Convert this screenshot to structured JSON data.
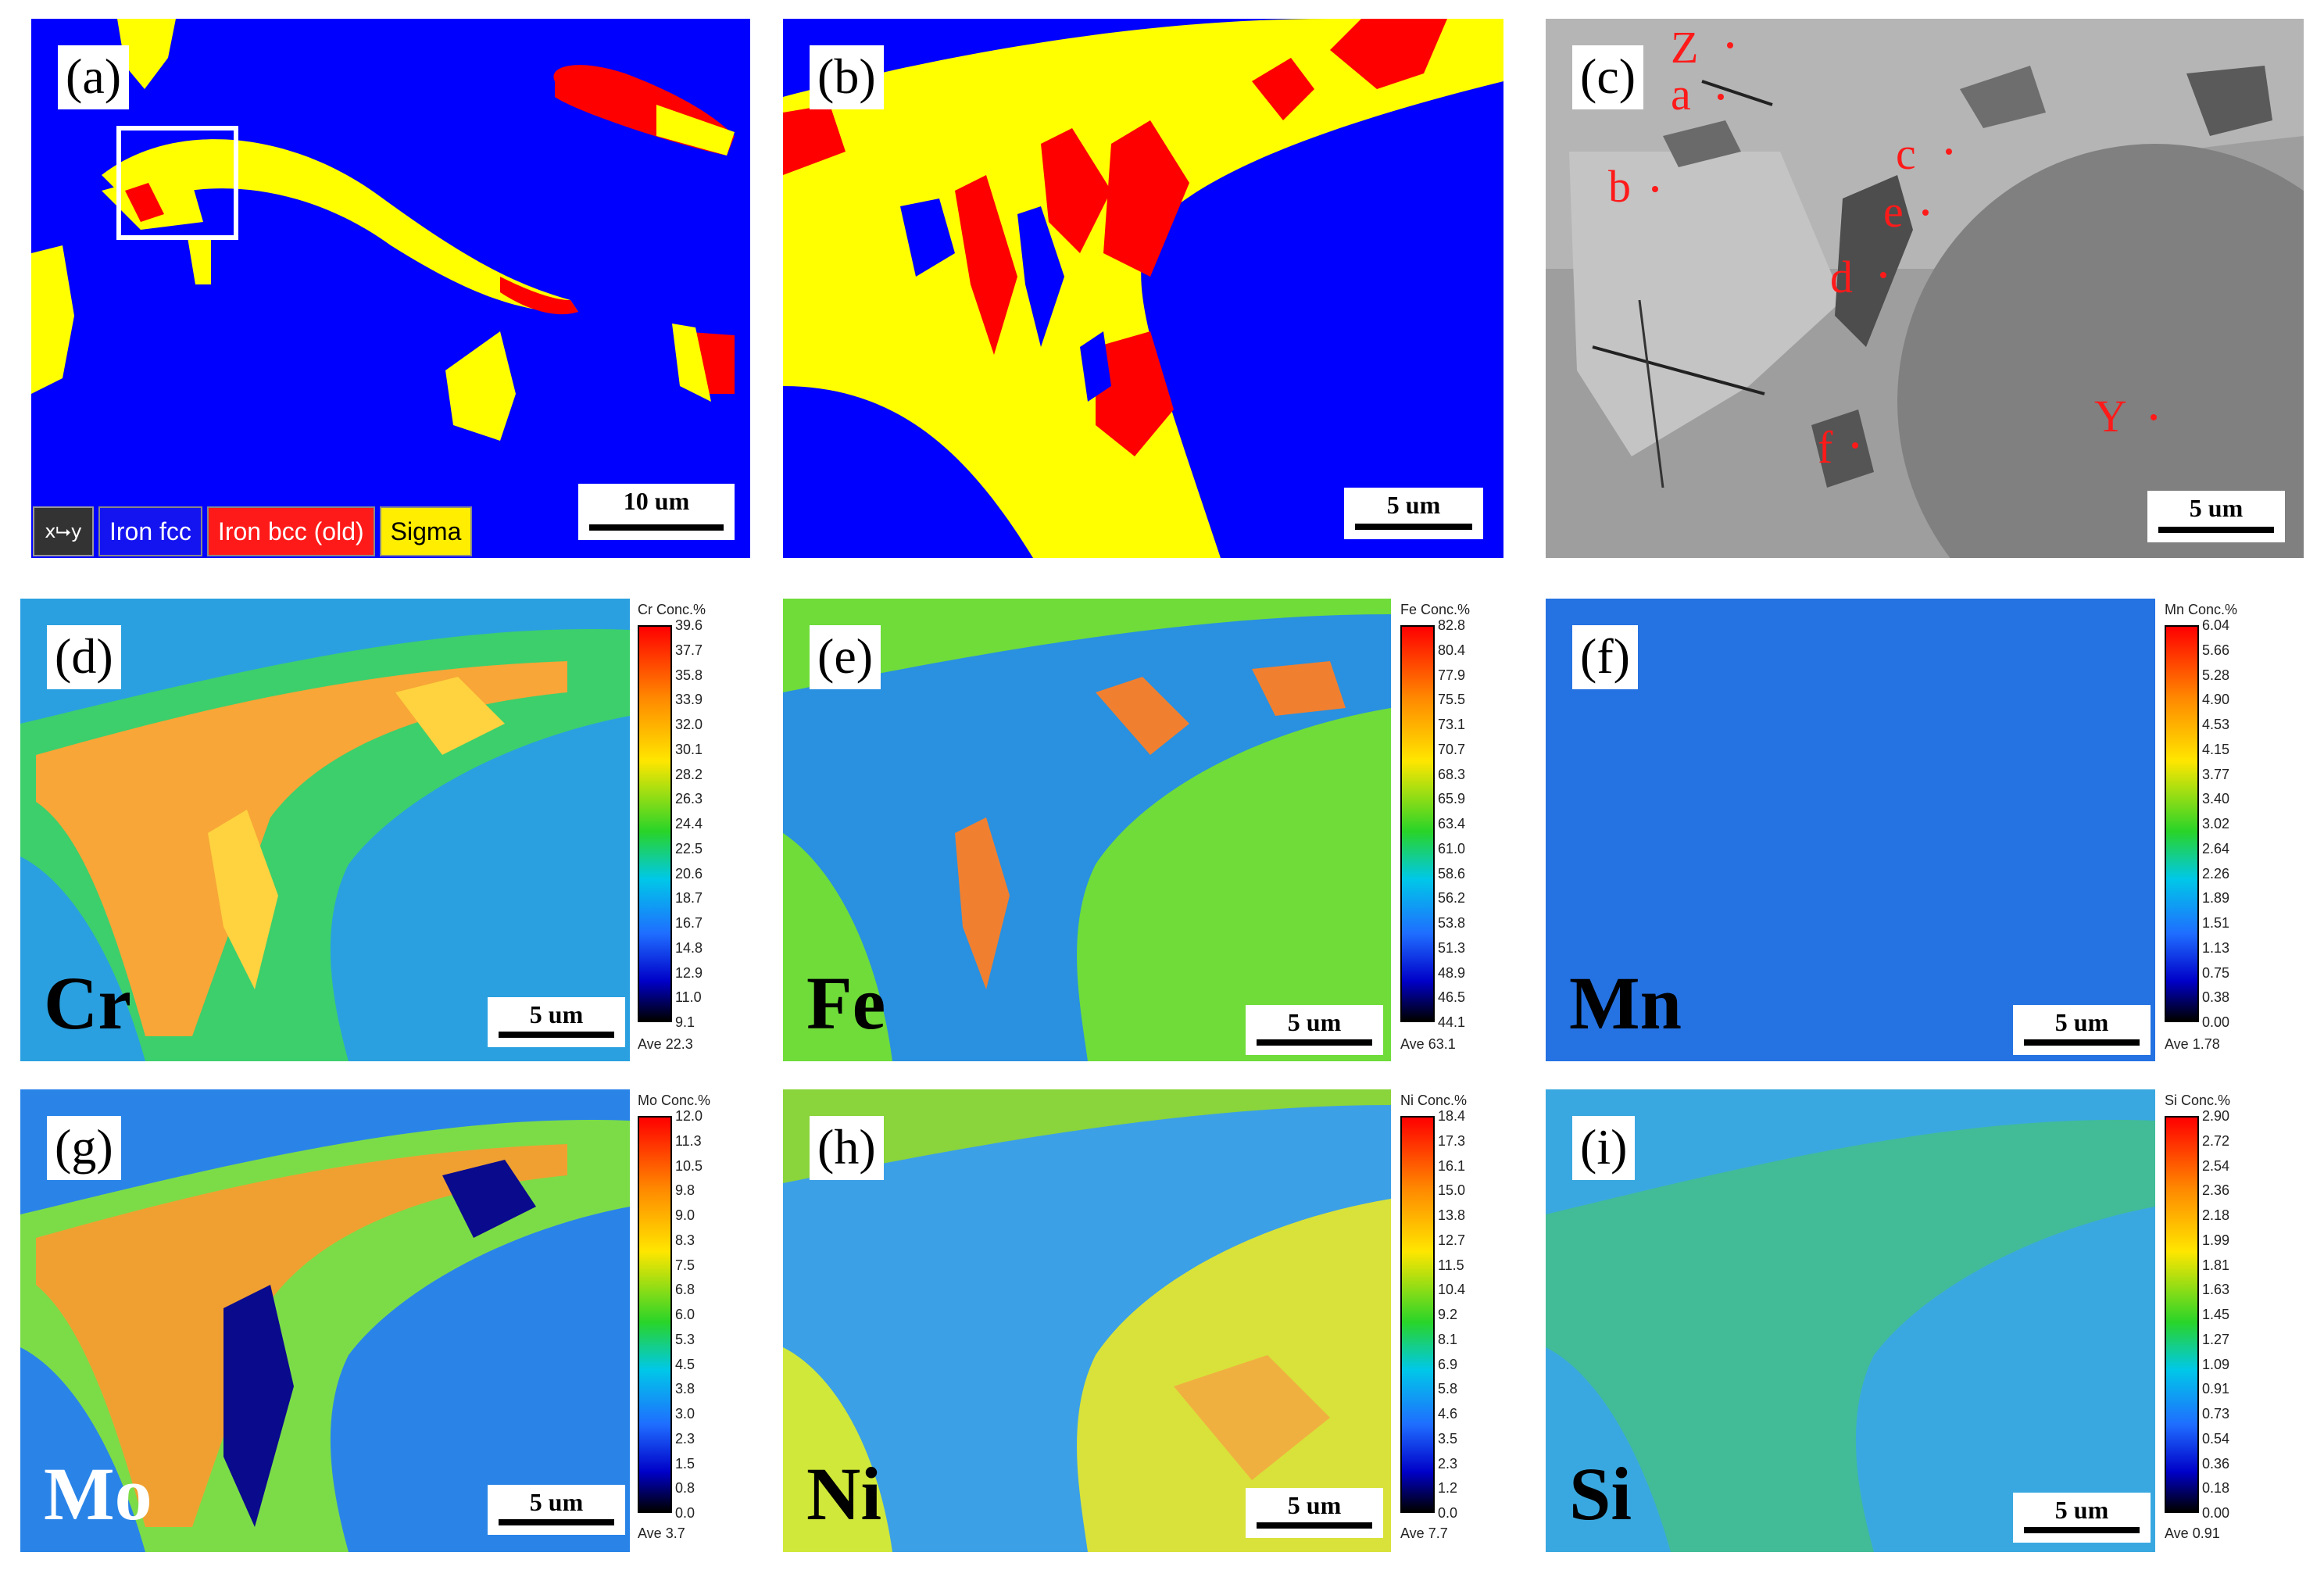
{
  "panels": {
    "a": {
      "label": "(a)",
      "scale": "10 um"
    },
    "b": {
      "label": "(b)",
      "scale": "5 um"
    },
    "c": {
      "label": "(c)",
      "scale": "5 um",
      "points": [
        "Z",
        "a",
        "b",
        "c",
        "e",
        "d",
        "Y",
        "f"
      ]
    },
    "d": {
      "label": "(d)",
      "element": "Cr",
      "scale": "5 um",
      "cbar_title": "Cr  Conc.%",
      "ticks": [
        "39.6",
        "37.7",
        "35.8",
        "33.9",
        "32.0",
        "30.1",
        "28.2",
        "26.3",
        "24.4",
        "22.5",
        "20.6",
        "18.7",
        "16.7",
        "14.8",
        "12.9",
        "11.0",
        "9.1"
      ],
      "ave": "Ave 22.3"
    },
    "e": {
      "label": "(e)",
      "element": "Fe",
      "scale": "5 um",
      "cbar_title": "Fe  Conc.%",
      "ticks": [
        "82.8",
        "80.4",
        "77.9",
        "75.5",
        "73.1",
        "70.7",
        "68.3",
        "65.9",
        "63.4",
        "61.0",
        "58.6",
        "56.2",
        "53.8",
        "51.3",
        "48.9",
        "46.5",
        "44.1"
      ],
      "ave": "Ave 63.1"
    },
    "f": {
      "label": "(f)",
      "element": "Mn",
      "scale": "5 um",
      "cbar_title": "Mn  Conc.%",
      "ticks": [
        "6.04",
        "5.66",
        "5.28",
        "4.90",
        "4.53",
        "4.15",
        "3.77",
        "3.40",
        "3.02",
        "2.64",
        "2.26",
        "1.89",
        "1.51",
        "1.13",
        "0.75",
        "0.38",
        "0.00"
      ],
      "ave": "Ave 1.78"
    },
    "g": {
      "label": "(g)",
      "element": "Mo",
      "scale": "5 um",
      "cbar_title": "Mo  Conc.%",
      "ticks": [
        "12.0",
        "11.3",
        "10.5",
        "9.8",
        "9.0",
        "8.3",
        "7.5",
        "6.8",
        "6.0",
        "5.3",
        "4.5",
        "3.8",
        "3.0",
        "2.3",
        "1.5",
        "0.8",
        "0.0"
      ],
      "ave": "Ave 3.7"
    },
    "h": {
      "label": "(h)",
      "element": "Ni",
      "scale": "5 um",
      "cbar_title": "Ni  Conc.%",
      "ticks": [
        "18.4",
        "17.3",
        "16.1",
        "15.0",
        "13.8",
        "12.7",
        "11.5",
        "10.4",
        "9.2",
        "8.1",
        "6.9",
        "5.8",
        "4.6",
        "3.5",
        "2.3",
        "1.2",
        "0.0"
      ],
      "ave": "Ave 7.7"
    },
    "i": {
      "label": "(i)",
      "element": "Si",
      "scale": "5 um",
      "cbar_title": "Si  Conc.%",
      "ticks": [
        "2.90",
        "2.72",
        "2.54",
        "2.36",
        "2.18",
        "1.99",
        "1.81",
        "1.63",
        "1.45",
        "1.27",
        "1.09",
        "0.91",
        "0.73",
        "0.54",
        "0.36",
        "0.18",
        "0.00"
      ],
      "ave": "Ave 0.91"
    }
  },
  "legend": {
    "axes_icon": "xy-axes-icon",
    "items": [
      {
        "label": "Iron fcc",
        "color": "#1414f0",
        "text_color": "#ffffff"
      },
      {
        "label": "Iron bcc (old)",
        "color": "#ff1a1a",
        "text_color": "#ffffff"
      },
      {
        "label": "Sigma",
        "color": "#ffee00",
        "text_color": "#000000"
      }
    ]
  },
  "colors": {
    "fcc": "#0000ff",
    "bcc": "#ff0000",
    "sigma": "#ffff00",
    "sem_gray": "#9a9a9a",
    "annot_red": "#ff1a1a"
  }
}
